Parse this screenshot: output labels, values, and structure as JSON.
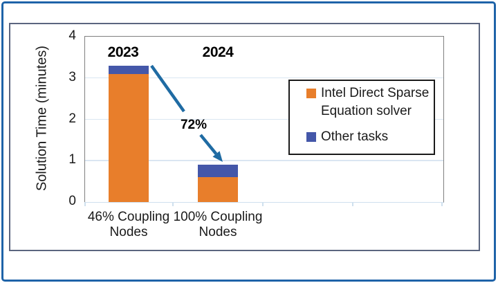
{
  "chart_data": {
    "type": "bar",
    "stacked": true,
    "categories": [
      "46% Coupling Nodes",
      "100% Coupling Nodes"
    ],
    "series": [
      {
        "name": "Intel Direct Sparse Equation solver",
        "color": "#e87e2b",
        "values": [
          3.1,
          0.6
        ]
      },
      {
        "name": "Other tasks",
        "color": "#4457a9",
        "values": [
          0.2,
          0.3
        ]
      }
    ],
    "bar_totals": [
      3.3,
      0.9
    ],
    "ylabel": "Solution Time (minutes)",
    "ylim": [
      0,
      4
    ],
    "yticks": [
      0,
      1,
      2,
      3,
      4
    ],
    "grid": "horizontal-light",
    "legend_position": "inside-right",
    "annotations": {
      "bar_year_labels": [
        "2023",
        "2024"
      ],
      "arrow_label": "72%"
    }
  },
  "colors": {
    "solver_orange": "#e87e2b",
    "other_blue": "#4457a9",
    "arrow_blue": "#1f6ba3",
    "outer_border_blue": "#1e63a8",
    "chart_box_border": "#5b657f",
    "plot_border_gray": "#7f7f7f",
    "gridline_blue": "#dae6f2",
    "axis_line_blue": "#cfe0ee",
    "legend_border": "#1a1a1a",
    "text": "#1a1a1a"
  }
}
